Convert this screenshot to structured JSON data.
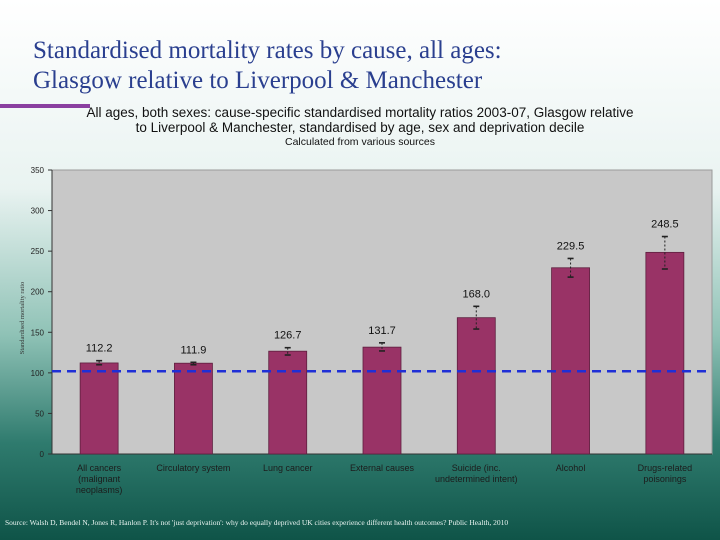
{
  "slide": {
    "title_line1": "Standardised mortality rates by cause, all ages:",
    "title_line2": "Glasgow relative to Liverpool & Manchester",
    "accent_color": "#8a3fa0",
    "source": "Source: Walsh D, Bendel N, Jones R, Hanlon P. It's not 'just deprivation': why do equally deprived UK cities experience different health outcomes? Public Health, 2010"
  },
  "chart_data": {
    "type": "bar",
    "title_line1": "All ages, both sexes: cause-specific standardised mortality ratios 2003-07, Glasgow relative",
    "title_line2": "to Liverpool & Manchester, standardised by age, sex and deprivation decile",
    "subtitle": "Calculated from various sources",
    "ylabel": "Standardised mortality ratio",
    "xlabel": "",
    "ylim": [
      0,
      350
    ],
    "yticks": [
      0,
      50,
      100,
      150,
      200,
      250,
      300,
      350
    ],
    "categories": [
      [
        "All cancers",
        "(malignant",
        "neoplasms)"
      ],
      [
        "Circulatory system"
      ],
      [
        "Lung cancer"
      ],
      [
        "External causes"
      ],
      [
        "Suicide (inc.",
        "undetermined intent)"
      ],
      [
        "Alcohol"
      ],
      [
        "Drugs-related",
        "poisonings"
      ]
    ],
    "values": [
      112.2,
      111.9,
      126.7,
      131.7,
      168.0,
      229.5,
      248.5
    ],
    "value_labels": [
      "112.2",
      "111.9",
      "126.7",
      "131.7",
      "168.0",
      "229.5",
      "248.5"
    ],
    "ci_lower": [
      110,
      110,
      122,
      127,
      154,
      218,
      228
    ],
    "ci_upper": [
      115,
      113,
      131,
      137,
      182,
      241,
      268
    ],
    "reference_line": 102,
    "grid": false,
    "legend": "none",
    "colors": {
      "bar": "#993366",
      "bar_edge": "#5e1f3f",
      "plot_bg": "#c8c8c8",
      "reference": "#1f2fd6",
      "axis": "#333333"
    }
  }
}
